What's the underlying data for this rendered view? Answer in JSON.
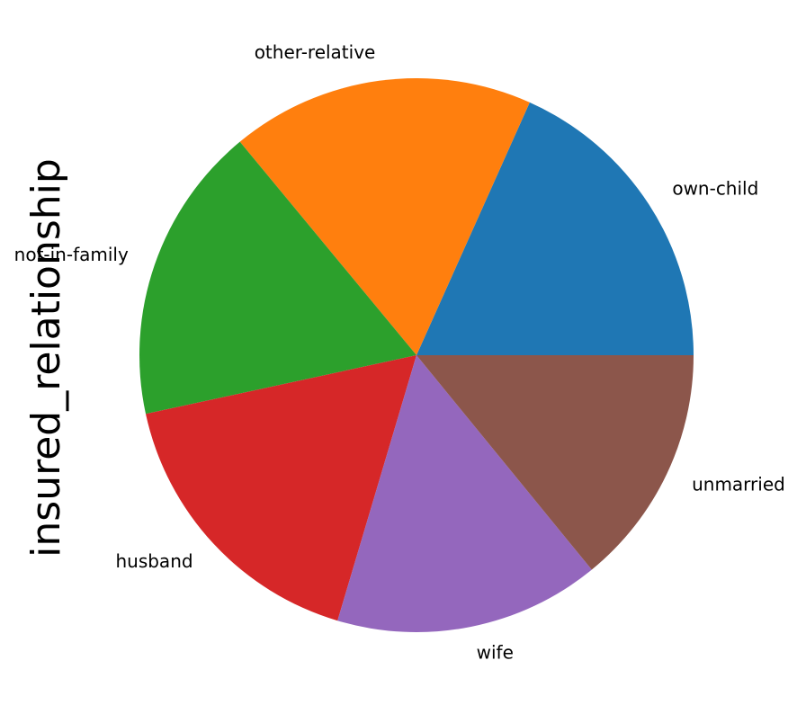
{
  "chart_data": {
    "type": "pie",
    "ylabel": "insured_relationship",
    "title": "",
    "categories": [
      "own-child",
      "other-relative",
      "not-in-family",
      "husband",
      "wife",
      "unmarried"
    ],
    "values": [
      183,
      177,
      174,
      170,
      155,
      141
    ],
    "colors": [
      "#1f77b4",
      "#ff7f0e",
      "#2ca02c",
      "#d62728",
      "#9467bd",
      "#8c564b"
    ],
    "start_angle_deg": 0,
    "direction": "counterclockwise",
    "legend": "none"
  }
}
